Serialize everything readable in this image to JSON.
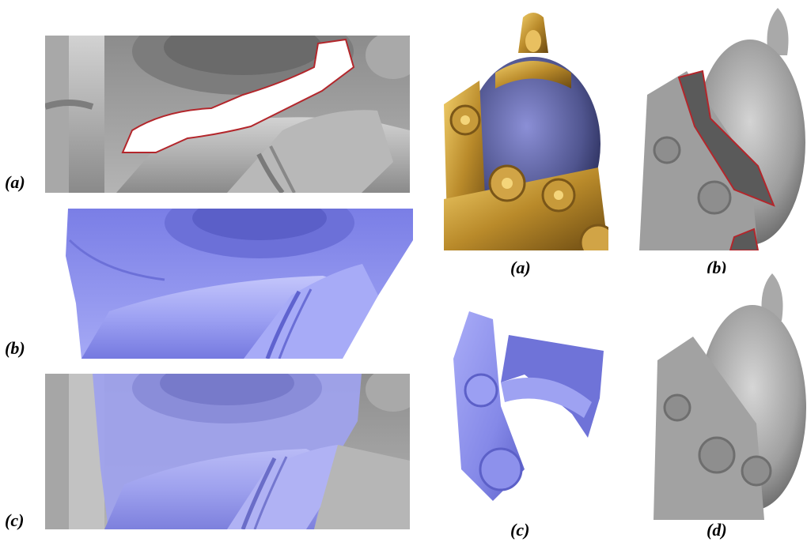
{
  "figure": {
    "left_labels": [
      "(a)",
      "(b)",
      "(c)"
    ],
    "right_labels": [
      "(a)",
      "(b)",
      "(c)",
      "(d)"
    ]
  },
  "colors": {
    "gray_mesh": "#9a9a9a",
    "blue_mesh": "#8a8ef0",
    "gold": "#b98a2a",
    "hole_outline": "#b3262b"
  }
}
